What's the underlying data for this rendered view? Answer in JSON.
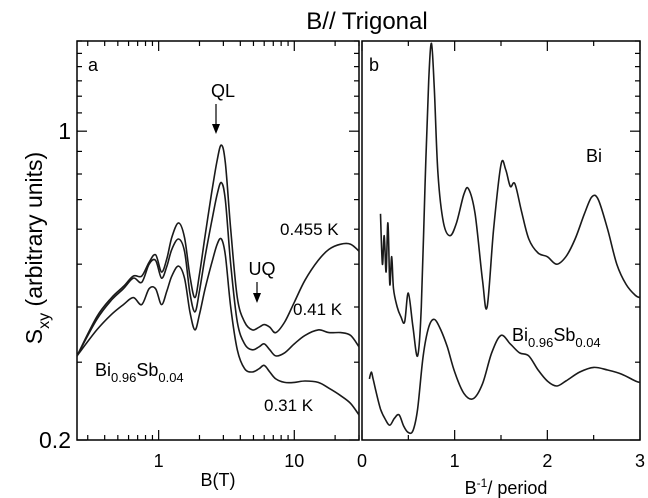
{
  "title": "B// Trigonal",
  "chart_data": [
    {
      "type": "line",
      "panel_label": "a",
      "xlabel": "B(T)",
      "ylabel_main": "S",
      "ylabel_sub": "xy",
      "ylabel_rest": " (arbitrary units)",
      "xscale": "log",
      "yscale": "log",
      "xlim": [
        0.25,
        30
      ],
      "ylim": [
        0.2,
        1.6
      ],
      "xticks": [
        {
          "value": 1,
          "label": "1"
        },
        {
          "value": 10,
          "label": "10"
        }
      ],
      "yticks": [
        {
          "value": 0.2,
          "label": "0.2"
        },
        {
          "value": 1,
          "label": "1"
        }
      ],
      "sample_label": {
        "main": "Bi",
        "sub": "0.96",
        "main2": "Sb",
        "sub2": "0.04"
      },
      "annotations": [
        {
          "text": "QL",
          "x": 2.9,
          "y": 0.93,
          "arrow": true
        },
        {
          "text": "UQ",
          "x": 5.9,
          "y": 0.365,
          "arrow": true
        }
      ],
      "series": [
        {
          "name": "0.455 K",
          "x": [
            0.25,
            0.35,
            0.45,
            0.55,
            0.65,
            0.75,
            0.85,
            0.95,
            1.05,
            1.15,
            1.25,
            1.4,
            1.55,
            1.7,
            1.85,
            2.0,
            2.2,
            2.45,
            2.7,
            2.9,
            3.1,
            3.4,
            3.8,
            4.3,
            4.9,
            5.5,
            6.0,
            6.6,
            7.3,
            8.5,
            10,
            12,
            15,
            18,
            22,
            26,
            30
          ],
          "y": [
            0.31,
            0.38,
            0.42,
            0.445,
            0.47,
            0.47,
            0.505,
            0.525,
            0.48,
            0.515,
            0.575,
            0.62,
            0.575,
            0.47,
            0.42,
            0.475,
            0.58,
            0.72,
            0.86,
            0.93,
            0.85,
            0.6,
            0.42,
            0.37,
            0.355,
            0.36,
            0.365,
            0.36,
            0.35,
            0.37,
            0.41,
            0.46,
            0.51,
            0.54,
            0.555,
            0.555,
            0.535
          ]
        },
        {
          "name": "0.41 K",
          "x": [
            0.25,
            0.35,
            0.45,
            0.55,
            0.65,
            0.75,
            0.85,
            0.95,
            1.05,
            1.15,
            1.25,
            1.4,
            1.55,
            1.7,
            1.85,
            2.0,
            2.2,
            2.45,
            2.7,
            2.9,
            3.1,
            3.4,
            3.8,
            4.3,
            4.9,
            5.5,
            6.0,
            6.6,
            7.3,
            8.5,
            10,
            12,
            15,
            18,
            22,
            26,
            30
          ],
          "y": [
            0.31,
            0.375,
            0.415,
            0.44,
            0.465,
            0.455,
            0.5,
            0.51,
            0.465,
            0.495,
            0.54,
            0.57,
            0.535,
            0.43,
            0.39,
            0.435,
            0.52,
            0.62,
            0.72,
            0.765,
            0.7,
            0.5,
            0.37,
            0.33,
            0.32,
            0.325,
            0.33,
            0.32,
            0.31,
            0.315,
            0.33,
            0.345,
            0.355,
            0.35,
            0.35,
            0.345,
            0.325
          ]
        },
        {
          "name": "0.31 K",
          "x": [
            0.25,
            0.35,
            0.45,
            0.55,
            0.65,
            0.75,
            0.85,
            0.95,
            1.05,
            1.15,
            1.25,
            1.4,
            1.55,
            1.7,
            1.85,
            2.0,
            2.2,
            2.45,
            2.7,
            2.9,
            3.1,
            3.4,
            3.8,
            4.3,
            4.9,
            5.5,
            6.0,
            6.6,
            7.3,
            8.5,
            10,
            12,
            15,
            18,
            22,
            26,
            30
          ],
          "y": [
            0.31,
            0.355,
            0.385,
            0.405,
            0.42,
            0.405,
            0.44,
            0.44,
            0.405,
            0.435,
            0.47,
            0.495,
            0.465,
            0.39,
            0.355,
            0.385,
            0.44,
            0.5,
            0.555,
            0.57,
            0.525,
            0.4,
            0.32,
            0.29,
            0.285,
            0.29,
            0.295,
            0.285,
            0.275,
            0.27,
            0.27,
            0.272,
            0.27,
            0.262,
            0.252,
            0.242,
            0.228
          ]
        }
      ]
    },
    {
      "type": "line",
      "panel_label": "b",
      "xlabel_main": "B",
      "xlabel_sup": "-1",
      "xlabel_rest": "/ period",
      "xlim": [
        0,
        3
      ],
      "ylim": [
        0.2,
        1.6
      ],
      "xticks": [
        {
          "value": 0,
          "label": "0"
        },
        {
          "value": 1,
          "label": "1"
        },
        {
          "value": 2,
          "label": "2"
        },
        {
          "value": 3,
          "label": "3"
        }
      ],
      "series": [
        {
          "name": "Bi",
          "x": [
            0.2,
            0.22,
            0.24,
            0.26,
            0.28,
            0.3,
            0.32,
            0.34,
            0.38,
            0.42,
            0.46,
            0.5,
            0.55,
            0.6,
            0.64,
            0.68,
            0.72,
            0.75,
            0.78,
            0.82,
            0.88,
            0.95,
            1.02,
            1.1,
            1.15,
            1.22,
            1.3,
            1.35,
            1.42,
            1.5,
            1.55,
            1.6,
            1.65,
            1.72,
            1.8,
            1.9,
            2.0,
            2.1,
            2.2,
            2.3,
            2.4,
            2.48,
            2.55,
            2.65,
            2.75,
            2.85,
            2.95,
            3.0
          ],
          "y": [
            0.65,
            0.5,
            0.58,
            0.48,
            0.62,
            0.45,
            0.52,
            0.44,
            0.4,
            0.38,
            0.37,
            0.43,
            0.36,
            0.31,
            0.4,
            0.75,
            1.3,
            1.58,
            1.25,
            0.8,
            0.62,
            0.58,
            0.62,
            0.72,
            0.74,
            0.65,
            0.46,
            0.4,
            0.6,
            0.84,
            0.82,
            0.75,
            0.76,
            0.66,
            0.57,
            0.53,
            0.52,
            0.5,
            0.52,
            0.57,
            0.65,
            0.71,
            0.7,
            0.6,
            0.5,
            0.45,
            0.425,
            0.42
          ]
        },
        {
          "name": "Bi0.96Sb0.04",
          "x": [
            0.08,
            0.1,
            0.12,
            0.15,
            0.2,
            0.25,
            0.3,
            0.35,
            0.4,
            0.45,
            0.5,
            0.55,
            0.6,
            0.66,
            0.72,
            0.78,
            0.85,
            0.92,
            1.0,
            1.1,
            1.2,
            1.3,
            1.4,
            1.5,
            1.6,
            1.7,
            1.8,
            1.9,
            2.0,
            2.1,
            2.2,
            2.35,
            2.5,
            2.65,
            2.8,
            2.95,
            3.0
          ],
          "y": [
            0.275,
            0.285,
            0.275,
            0.258,
            0.235,
            0.223,
            0.216,
            0.224,
            0.228,
            0.215,
            0.208,
            0.21,
            0.235,
            0.31,
            0.36,
            0.375,
            0.355,
            0.325,
            0.285,
            0.255,
            0.248,
            0.268,
            0.315,
            0.345,
            0.33,
            0.315,
            0.31,
            0.288,
            0.272,
            0.265,
            0.272,
            0.285,
            0.292,
            0.288,
            0.282,
            0.272,
            0.27
          ]
        }
      ]
    }
  ]
}
